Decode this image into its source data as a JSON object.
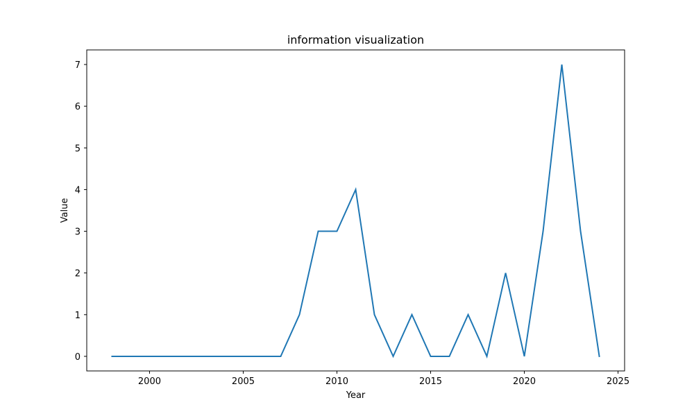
{
  "chart_data": {
    "type": "line",
    "title": "information visualization",
    "xlabel": "Year",
    "ylabel": "Value",
    "xlim": [
      1996.65,
      2025.35
    ],
    "ylim": [
      -0.35,
      7.35
    ],
    "xticks": [
      2000,
      2005,
      2010,
      2015,
      2020,
      2025
    ],
    "yticks": [
      0,
      1,
      2,
      3,
      4,
      5,
      6,
      7
    ],
    "grid": false,
    "series": [
      {
        "color": "#1f77b4",
        "x": [
          1998,
          1999,
          2000,
          2001,
          2002,
          2003,
          2004,
          2005,
          2006,
          2007,
          2008,
          2009,
          2010,
          2011,
          2012,
          2013,
          2014,
          2015,
          2016,
          2017,
          2018,
          2019,
          2020,
          2021,
          2022,
          2023,
          2024
        ],
        "y": [
          0,
          0,
          0,
          0,
          0,
          0,
          0,
          0,
          0,
          0,
          1,
          3,
          3,
          4,
          1,
          0,
          1,
          0,
          0,
          1,
          0,
          2,
          0,
          3,
          7,
          3,
          0
        ]
      }
    ]
  }
}
